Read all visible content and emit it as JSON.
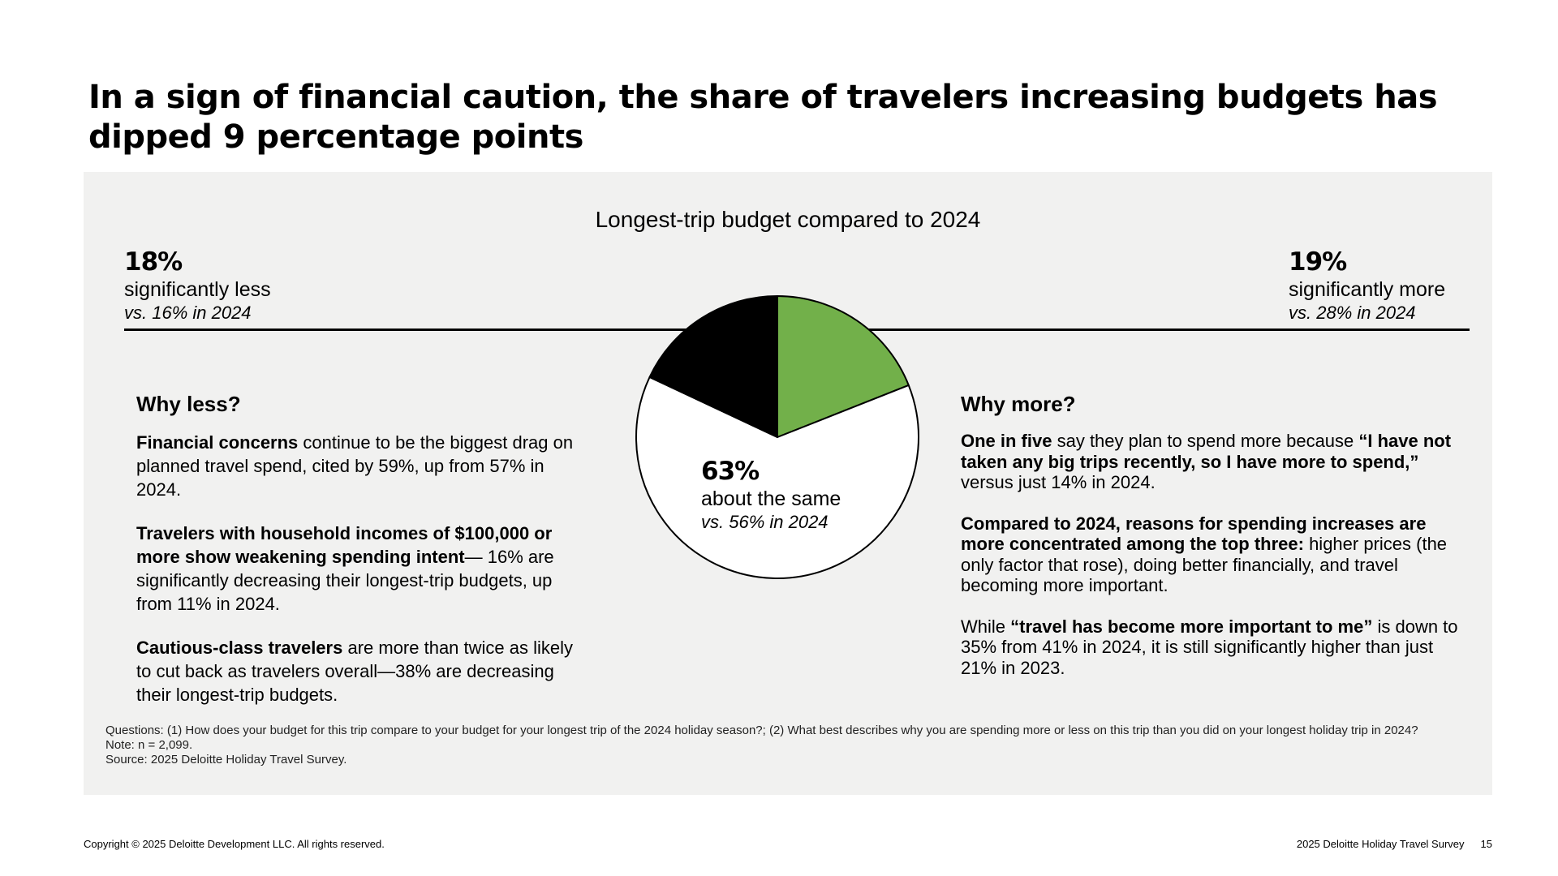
{
  "title": "In a sign of financial caution, the share of travelers increasing budgets has dipped 9 percentage points",
  "colors": {
    "more": "#72b04a",
    "less": "#000000",
    "same": "#ffffff",
    "panel": "#f1f1f0"
  },
  "chart_data": {
    "type": "pie",
    "title": "Longest-trip budget compared to 2024",
    "slices": [
      {
        "label": "significantly more",
        "value": 19,
        "pct_text": "19%",
        "comparison": "vs. 28% in 2024",
        "color": "#72b04a"
      },
      {
        "label": "about the same",
        "value": 63,
        "pct_text": "63%",
        "comparison": "vs. 56% in 2024",
        "color": "#ffffff"
      },
      {
        "label": "significantly less",
        "value": 18,
        "pct_text": "18%",
        "comparison": "vs. 16% in 2024",
        "color": "#000000"
      }
    ]
  },
  "why_less": {
    "heading": "Why less?",
    "paragraphs": [
      {
        "bold": "Financial concerns",
        "text": " continue to be the biggest drag on planned travel spend, cited by 59%, up from 57% in 2024."
      },
      {
        "bold": "Travelers with household incomes of $100,000 or more show weakening spending intent",
        "text": "— 16% are significantly decreasing their longest-trip budgets, up from 11% in 2024."
      },
      {
        "bold": "Cautious-class travelers",
        "text": " are more than twice as likely to cut back as travelers overall—38% are decreasing their longest-trip budgets."
      }
    ]
  },
  "why_more": {
    "heading": "Why more?",
    "p1": {
      "bold1": "One in five",
      "text1": " say they plan to spend more because ",
      "bold2": "“I have not taken any big trips recently, so I have more to spend,”",
      "text2": " versus just 14% in 2024."
    },
    "p2": {
      "bold": "Compared to 2024, reasons for spending increases are more concentrated among the top three:",
      "text": " higher prices (the only factor that rose), doing better financially, and travel becoming more important."
    },
    "p3": {
      "text1": "While ",
      "bold": "“travel has become more important to me”",
      "text2": " is down to 35% from 41% in 2024, it is still significantly higher than just 21% in 2023."
    }
  },
  "notes": {
    "questions": "Questions: (1) How does your budget for this trip compare to your budget for your longest trip of the 2024 holiday season?; (2) What best describes why you are spending more or less on this trip than you did on your longest holiday trip in 2024?",
    "note": "Note: n = 2,099.",
    "source": "Source: 2025 Deloitte Holiday Travel Survey."
  },
  "footer": {
    "copyright": "Copyright © 2025 Deloitte Development LLC. All rights reserved.",
    "survey": "2025 Deloitte Holiday Travel Survey",
    "page": "15"
  }
}
